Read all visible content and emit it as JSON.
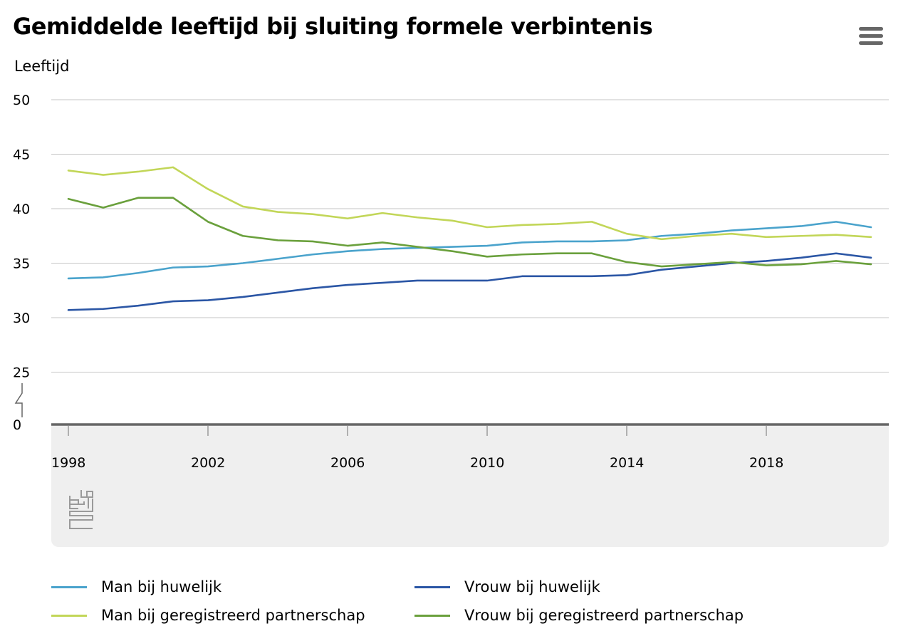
{
  "page": {
    "title": "Gemiddelde leeftijd bij sluiting formele verbintenis",
    "menu_icon": "hamburger-menu-icon",
    "logo_icon": "cbs-logo-icon"
  },
  "colors": {
    "grid": "#c6c6c6",
    "axis": "#666666",
    "footer_bg": "#efefef",
    "text": "#000000"
  },
  "chart_data": {
    "type": "line",
    "title": "Gemiddelde leeftijd bij sluiting formele verbintenis",
    "xlabel": "",
    "ylabel": "Leeftijd",
    "x": [
      1998,
      1999,
      2000,
      2001,
      2002,
      2003,
      2004,
      2005,
      2006,
      2007,
      2008,
      2009,
      2010,
      2011,
      2012,
      2013,
      2014,
      2015,
      2016,
      2017,
      2018,
      2019,
      2020,
      2021
    ],
    "x_ticks": [
      1998,
      2002,
      2006,
      2010,
      2014,
      2018
    ],
    "y_ticks": [
      0,
      25,
      30,
      35,
      40,
      45,
      50
    ],
    "ylim": [
      0,
      50
    ],
    "axis_break": [
      0,
      25
    ],
    "grid": true,
    "legend_position": "bottom",
    "series": [
      {
        "name": "Man bij huwelijk",
        "color": "#4aa3cc",
        "values": [
          33.6,
          33.7,
          34.1,
          34.6,
          34.7,
          35.0,
          35.4,
          35.8,
          36.1,
          36.3,
          36.4,
          36.5,
          36.6,
          36.9,
          37.0,
          37.0,
          37.1,
          37.5,
          37.7,
          38.0,
          38.2,
          38.4,
          38.8,
          38.3
        ]
      },
      {
        "name": "Vrouw bij huwelijk",
        "color": "#2b56a5",
        "values": [
          30.7,
          30.8,
          31.1,
          31.5,
          31.6,
          31.9,
          32.3,
          32.7,
          33.0,
          33.2,
          33.4,
          33.4,
          33.4,
          33.8,
          33.8,
          33.8,
          33.9,
          34.4,
          34.7,
          35.0,
          35.2,
          35.5,
          35.9,
          35.5
        ]
      },
      {
        "name": "Man bij geregistreerd partnerschap",
        "color": "#c2d658",
        "values": [
          43.5,
          43.1,
          43.4,
          43.8,
          41.8,
          40.2,
          39.7,
          39.5,
          39.1,
          39.6,
          39.2,
          38.9,
          38.3,
          38.5,
          38.6,
          38.8,
          37.7,
          37.2,
          37.5,
          37.7,
          37.4,
          37.5,
          37.6,
          37.4
        ]
      },
      {
        "name": "Vrouw bij geregistreerd partnerschap",
        "color": "#6aa03c",
        "values": [
          40.9,
          40.1,
          41.0,
          41.0,
          38.8,
          37.5,
          37.1,
          37.0,
          36.6,
          36.9,
          36.5,
          36.1,
          35.6,
          35.8,
          35.9,
          35.9,
          35.1,
          34.7,
          34.9,
          35.1,
          34.8,
          34.9,
          35.2,
          34.9
        ]
      }
    ]
  }
}
